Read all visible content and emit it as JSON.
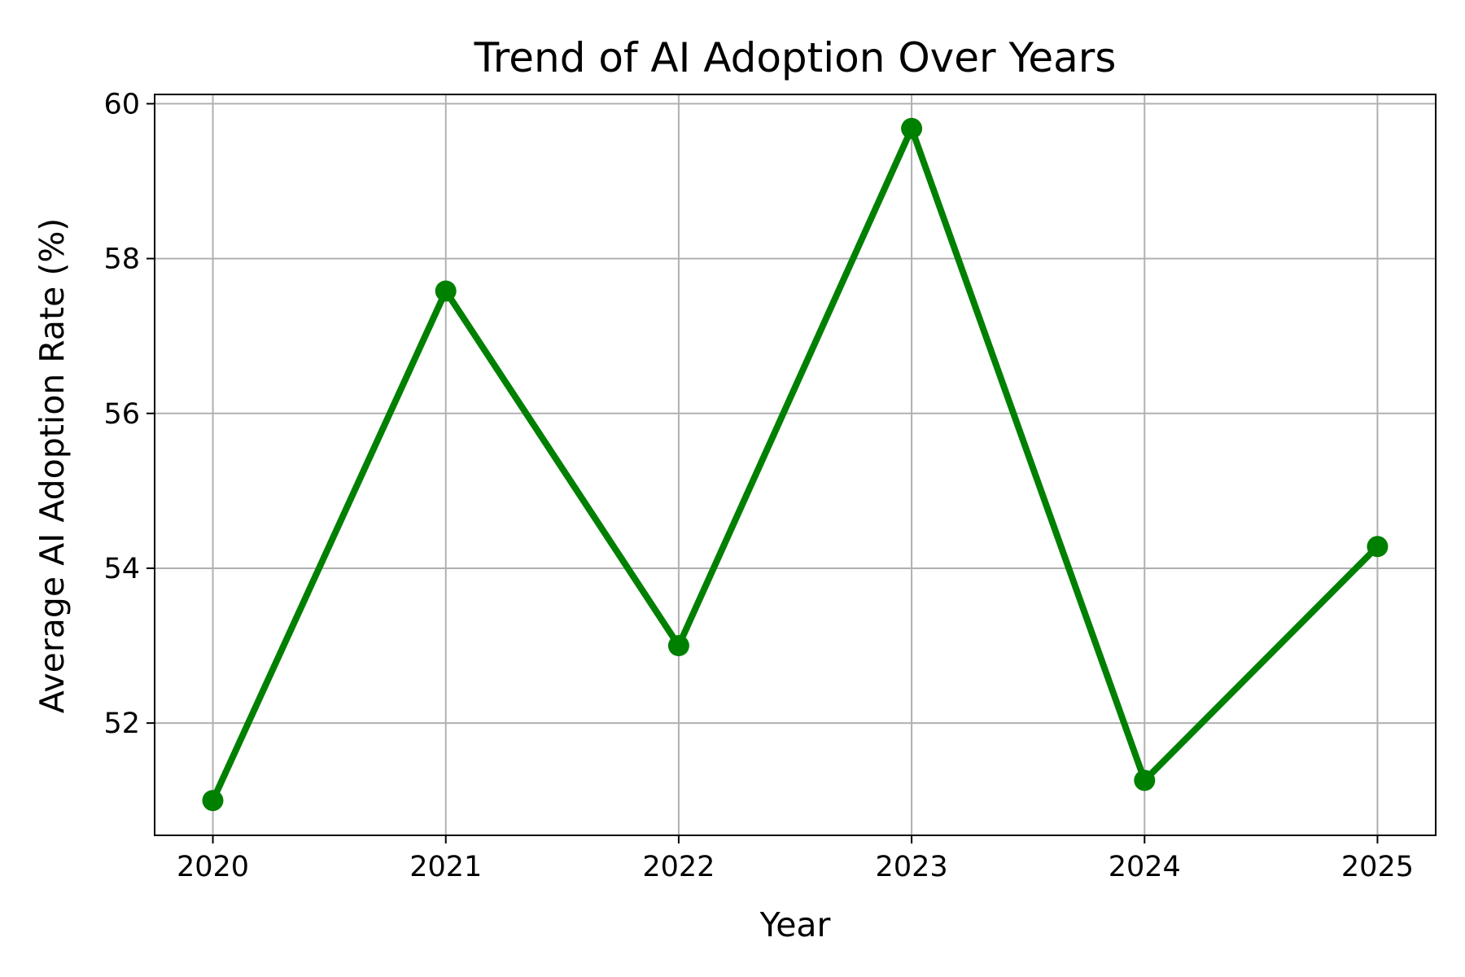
{
  "chart_data": {
    "type": "line",
    "title": "Trend of AI Adoption Over Years",
    "xlabel": "Year",
    "ylabel": "Average AI Adoption Rate (%)",
    "x": [
      "2020",
      "2021",
      "2022",
      "2023",
      "2024",
      "2025"
    ],
    "series": [
      {
        "values": [
          51.0,
          57.58,
          53.0,
          59.68,
          51.26,
          54.28
        ],
        "color": "#008000",
        "marker": "circle"
      }
    ],
    "xlim": [
      2019.75,
      2025.25
    ],
    "ylim": [
      50.55,
      60.12
    ],
    "yticks": [
      "52",
      "54",
      "56",
      "58",
      "60"
    ],
    "xticks": [
      "2020",
      "2021",
      "2022",
      "2023",
      "2024",
      "2025"
    ],
    "grid": true,
    "grid_color": "#b0b0b0",
    "axes_color": "#000000"
  }
}
